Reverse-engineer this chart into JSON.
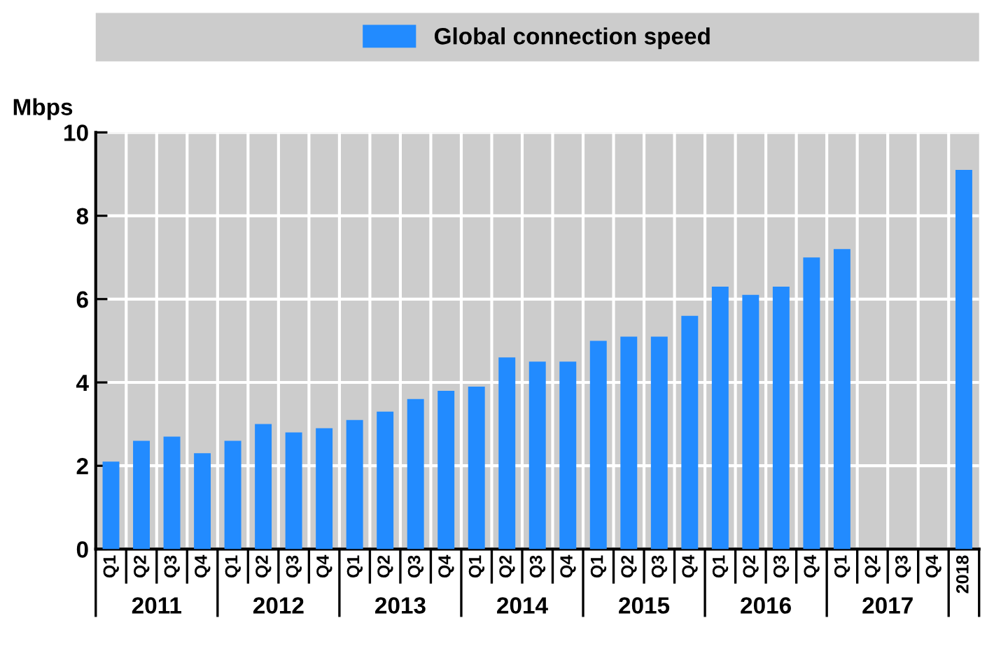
{
  "chart_data": {
    "type": "bar",
    "ylabel": "Mbps",
    "categories": [
      "Q1",
      "Q2",
      "Q3",
      "Q4",
      "Q1",
      "Q2",
      "Q3",
      "Q4",
      "Q1",
      "Q2",
      "Q3",
      "Q4",
      "Q1",
      "Q2",
      "Q3",
      "Q4",
      "Q1",
      "Q2",
      "Q3",
      "Q4",
      "Q1",
      "Q2",
      "Q3",
      "Q4",
      "Q1",
      "Q2",
      "Q3",
      "Q4",
      "2018"
    ],
    "series": [
      {
        "name": "Global connection speed",
        "color": "#228bff",
        "values": [
          2.1,
          2.6,
          2.7,
          2.3,
          2.6,
          3.0,
          2.8,
          2.9,
          3.1,
          3.3,
          3.6,
          3.8,
          3.9,
          4.6,
          4.5,
          4.5,
          5.0,
          5.1,
          5.1,
          5.6,
          6.3,
          6.1,
          6.3,
          7.0,
          7.2,
          null,
          null,
          null,
          9.1
        ]
      }
    ],
    "annotations": [
      "2011",
      "2012",
      "2013",
      "2014",
      "2015",
      "2016",
      "2017"
    ],
    "ylim": [
      0,
      10
    ],
    "yticks": [
      0,
      2,
      4,
      6,
      8,
      10
    ],
    "grid": true,
    "legend": "top"
  }
}
